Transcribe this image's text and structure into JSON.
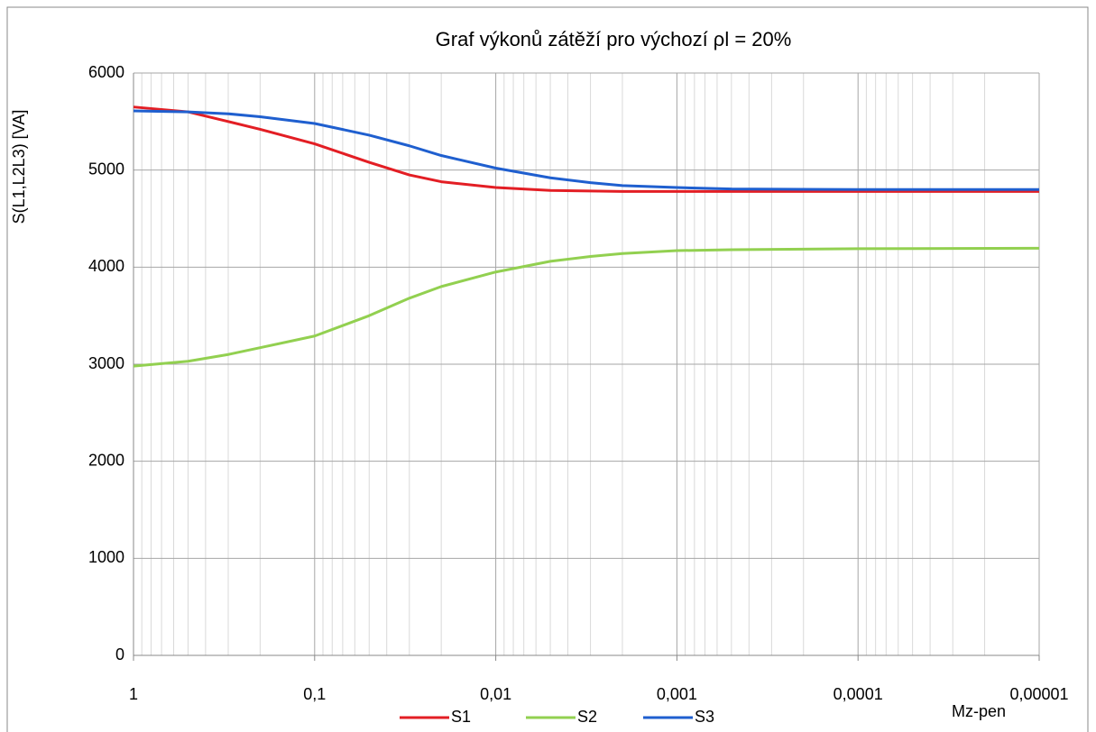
{
  "chart_data": {
    "type": "line",
    "title": "Graf  výkonů zátěží pro výchozí ρl = 20%",
    "y_label": "S(L1,L2L3)  [VA]",
    "x_label": "Mz-pen",
    "x": [
      1,
      0.5,
      0.3,
      0.2,
      0.1,
      0.05,
      0.03,
      0.02,
      0.01,
      0.005,
      0.003,
      0.002,
      0.001,
      0.0005,
      0.0001,
      1e-05
    ],
    "series": [
      {
        "name": "S1",
        "color": "#e31e24",
        "values": [
          5650,
          5600,
          5500,
          5420,
          5270,
          5080,
          4950,
          4880,
          4820,
          4790,
          4785,
          4780,
          4780,
          4780,
          4780,
          4780
        ]
      },
      {
        "name": "S2",
        "color": "#92d050",
        "values": [
          2980,
          3030,
          3100,
          3170,
          3290,
          3500,
          3680,
          3800,
          3950,
          4060,
          4110,
          4140,
          4170,
          4180,
          4190,
          4195
        ]
      },
      {
        "name": "S3",
        "color": "#1f5fcf",
        "values": [
          5610,
          5600,
          5580,
          5550,
          5480,
          5360,
          5250,
          5150,
          5020,
          4920,
          4870,
          4840,
          4820,
          4805,
          4800,
          4800
        ]
      }
    ],
    "x_log": true,
    "xlim": [
      1,
      1e-05
    ],
    "xticks": [
      1,
      {
        "value": 0.1,
        "label": "0,1"
      },
      {
        "value": 0.01,
        "label": "0,01"
      },
      {
        "value": 0.001,
        "label": "0,001"
      },
      {
        "value": 0.0001,
        "label": "0,0001"
      },
      {
        "value": 1e-05,
        "label": "0,00001"
      }
    ],
    "ylim": [
      0,
      6000
    ],
    "yticks": [
      0,
      1000,
      2000,
      3000,
      4000,
      5000,
      6000
    ],
    "grid": true,
    "legend": "bottom"
  }
}
